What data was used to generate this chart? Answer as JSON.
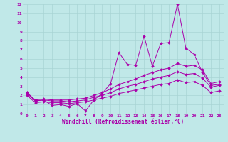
{
  "title": "",
  "xlabel": "Windchill (Refroidissement éolien,°C)",
  "ylabel": "",
  "bg_color": "#c0e8e8",
  "grid_color": "#a8d4d4",
  "line_color": "#aa00aa",
  "xlim": [
    -0.5,
    23.5
  ],
  "ylim": [
    0,
    12
  ],
  "xticks": [
    0,
    1,
    2,
    3,
    4,
    5,
    6,
    7,
    8,
    9,
    10,
    11,
    12,
    13,
    14,
    15,
    16,
    17,
    18,
    19,
    20,
    21,
    22,
    23
  ],
  "yticks": [
    0,
    1,
    2,
    3,
    4,
    5,
    6,
    7,
    8,
    9,
    10,
    11,
    12
  ],
  "series": [
    [
      2.3,
      1.4,
      1.5,
      0.9,
      1.0,
      0.8,
      1.1,
      0.3,
      1.5,
      2.2,
      3.3,
      6.7,
      5.4,
      5.3,
      8.5,
      5.2,
      7.7,
      7.8,
      12.0,
      7.2,
      6.5,
      4.5,
      3.1,
      3.2
    ],
    [
      2.3,
      1.5,
      1.6,
      1.5,
      1.5,
      1.5,
      1.6,
      1.7,
      2.0,
      2.3,
      2.7,
      3.2,
      3.5,
      3.8,
      4.2,
      4.5,
      4.8,
      5.0,
      5.5,
      5.2,
      5.3,
      4.8,
      3.3,
      3.5
    ],
    [
      2.2,
      1.4,
      1.5,
      1.4,
      1.4,
      1.3,
      1.4,
      1.5,
      1.8,
      2.0,
      2.3,
      2.7,
      3.0,
      3.2,
      3.5,
      3.8,
      4.0,
      4.2,
      4.6,
      4.3,
      4.4,
      3.9,
      2.9,
      3.1
    ],
    [
      2.0,
      1.2,
      1.3,
      1.2,
      1.2,
      1.1,
      1.2,
      1.3,
      1.5,
      1.7,
      1.9,
      2.2,
      2.4,
      2.6,
      2.8,
      3.0,
      3.2,
      3.3,
      3.7,
      3.4,
      3.5,
      3.1,
      2.3,
      2.5
    ]
  ]
}
